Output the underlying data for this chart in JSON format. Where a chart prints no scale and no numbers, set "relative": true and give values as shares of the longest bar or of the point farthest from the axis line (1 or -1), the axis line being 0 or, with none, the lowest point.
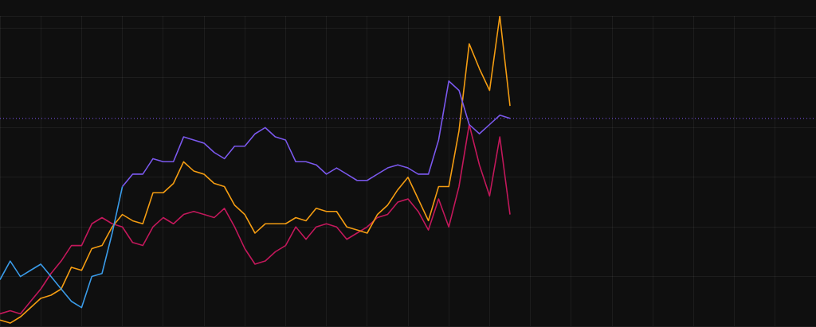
{
  "chart_data": {
    "type": "line",
    "relative": true,
    "grid": true,
    "legend": false,
    "line_style": "solid",
    "categories": [
      null,
      null,
      null,
      null,
      null,
      null,
      null,
      null,
      null,
      null,
      null,
      null,
      null,
      null,
      null,
      null,
      null,
      null,
      null,
      null,
      null,
      null,
      null,
      null,
      null,
      null,
      null,
      null,
      null,
      null,
      null,
      null,
      null,
      null,
      null,
      null,
      null,
      null,
      null,
      null,
      null,
      null,
      null,
      null,
      null,
      null,
      null,
      null,
      null,
      null,
      null,
      null,
      null,
      null,
      null,
      null,
      null,
      null,
      null,
      null,
      null,
      null,
      null,
      null,
      null,
      null,
      null,
      null,
      null,
      null,
      null,
      null,
      null,
      null,
      null,
      null,
      null,
      null,
      null,
      null,
      null
    ],
    "series": [
      {
        "color": "#3a9be8",
        "values": [
          0.15,
          0.21,
          0.16,
          0.18,
          0.2,
          0.16,
          0.12,
          0.08,
          0.06,
          0.16,
          0.17,
          0.3,
          0.45,
          null,
          null,
          null,
          null,
          null,
          null,
          null,
          null,
          null,
          null,
          null,
          null,
          null,
          null,
          null,
          null,
          null,
          null,
          null,
          null,
          null,
          null,
          null,
          null,
          null,
          null,
          null,
          null,
          null,
          null,
          null,
          null,
          null,
          null,
          null,
          null,
          null,
          null,
          null,
          null,
          null,
          null,
          null,
          null,
          null,
          null,
          null,
          null,
          null,
          null,
          null,
          null,
          null,
          null,
          null,
          null,
          null,
          null,
          null,
          null,
          null,
          null,
          null,
          null,
          null,
          null,
          null,
          null
        ]
      },
      {
        "color": "#7a58ec",
        "values": [
          null,
          null,
          null,
          null,
          null,
          null,
          null,
          null,
          null,
          null,
          null,
          null,
          0.45,
          0.49,
          0.49,
          0.54,
          0.53,
          0.53,
          0.61,
          0.6,
          0.59,
          0.56,
          0.54,
          0.58,
          0.58,
          0.62,
          0.64,
          0.61,
          0.6,
          0.53,
          0.53,
          0.52,
          0.49,
          0.51,
          0.49,
          0.47,
          0.47,
          0.49,
          0.51,
          0.52,
          0.51,
          0.49,
          0.49,
          0.6,
          0.79,
          0.76,
          0.65,
          0.62,
          0.65,
          0.68,
          0.67,
          null,
          null,
          null,
          null,
          null,
          null,
          null,
          null,
          null,
          null,
          null,
          null,
          null,
          null,
          null,
          null,
          null,
          null,
          null,
          null,
          null,
          null,
          null,
          null,
          null,
          null,
          null,
          null,
          null,
          null
        ]
      },
      {
        "color": "#f39c12",
        "values": [
          0.02,
          0.01,
          0.03,
          0.06,
          0.09,
          0.1,
          0.12,
          0.19,
          0.18,
          0.25,
          0.26,
          0.32,
          0.36,
          0.34,
          0.33,
          0.43,
          0.43,
          0.46,
          0.53,
          0.5,
          0.49,
          0.46,
          0.45,
          0.39,
          0.36,
          0.3,
          0.33,
          0.33,
          0.33,
          0.35,
          0.34,
          0.38,
          0.37,
          0.37,
          0.32,
          0.31,
          0.3,
          0.36,
          0.39,
          0.44,
          0.48,
          0.41,
          0.34,
          0.45,
          0.45,
          0.63,
          0.91,
          0.83,
          0.76,
          1.0,
          0.71,
          null,
          null,
          null,
          null,
          null,
          null,
          null,
          null,
          null,
          null,
          null,
          null,
          null,
          null,
          null,
          null,
          null,
          null,
          null,
          null,
          null,
          null,
          null,
          null,
          null,
          null,
          null,
          null,
          null,
          null
        ]
      },
      {
        "color": "#c2185b",
        "values": [
          0.04,
          0.05,
          0.04,
          0.08,
          0.12,
          0.17,
          0.21,
          0.26,
          0.26,
          0.33,
          0.35,
          0.33,
          0.32,
          0.27,
          0.26,
          0.32,
          0.35,
          0.33,
          0.36,
          0.37,
          0.36,
          0.35,
          0.38,
          0.32,
          0.25,
          0.2,
          0.21,
          0.24,
          0.26,
          0.32,
          0.28,
          0.32,
          0.33,
          0.32,
          0.28,
          0.3,
          0.32,
          0.35,
          0.36,
          0.4,
          0.41,
          0.37,
          0.31,
          0.41,
          0.32,
          0.45,
          0.65,
          0.52,
          0.42,
          0.61,
          0.36,
          null,
          null,
          null,
          null,
          null,
          null,
          null,
          null,
          null,
          null,
          null,
          null,
          null,
          null,
          null,
          null,
          null,
          null,
          null,
          null,
          null,
          null,
          null,
          null,
          null,
          null,
          null,
          null,
          null,
          null
        ]
      }
    ],
    "ref_lines": [
      {
        "axis": "y",
        "value": 0.67,
        "color": "#5b3fa8",
        "line_style": "dotted"
      }
    ]
  }
}
